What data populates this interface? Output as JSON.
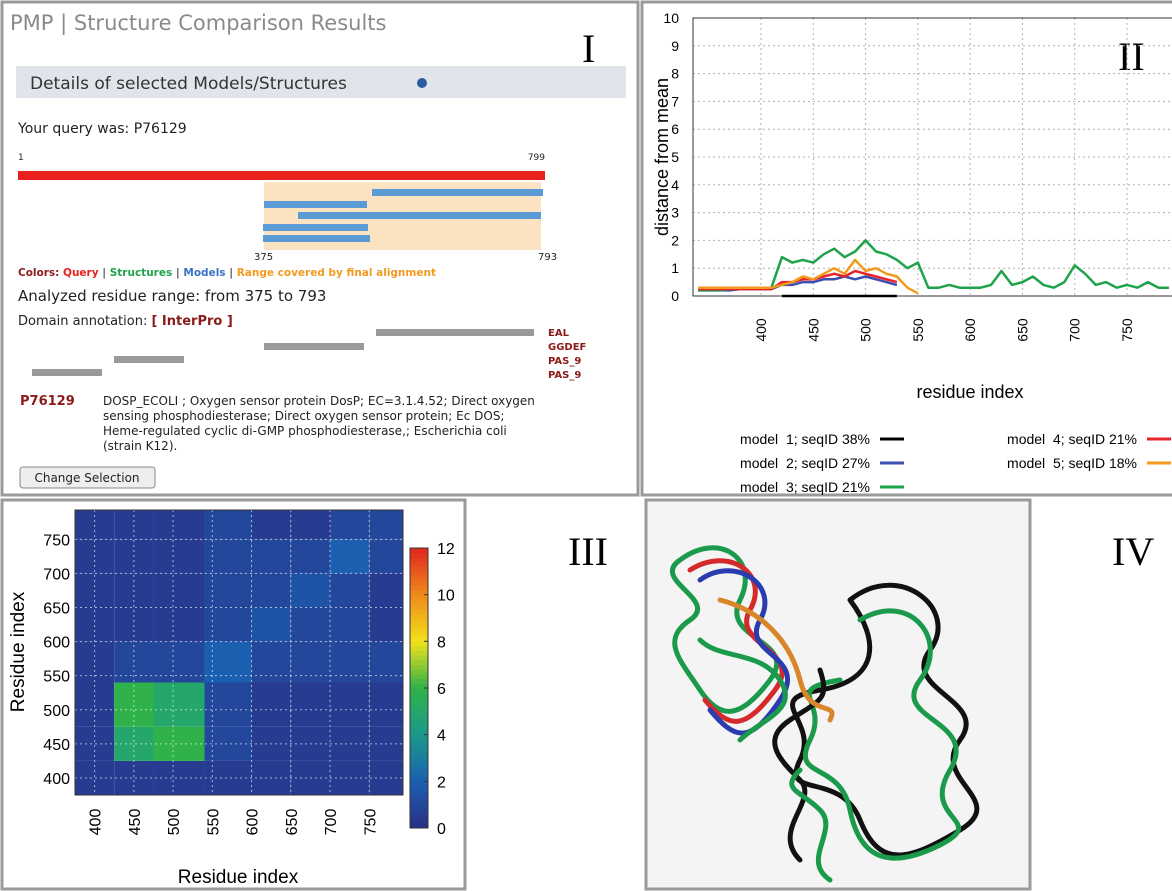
{
  "panel_1": {
    "label": "I",
    "title": "PMP | Structure Comparison Results",
    "section": "Details of selected Models/Structures",
    "query": "Your query was: P76129",
    "sequence_start": "1",
    "sequence_end": "799",
    "range_start": "375",
    "range_end": "793",
    "colors_label": "Colors:",
    "separator": "|",
    "color_query": "Query",
    "color_structures": "Structures",
    "color_models": "Models",
    "color_range": "Range covered by final alignment",
    "analyzed": "Analyzed residue range: from 375 to 793",
    "domain_label": "Domain annotation:",
    "domain_link": "[ InterPro ]",
    "domains": [
      "EAL",
      "GGDEF",
      "PAS_9",
      "PAS_9"
    ],
    "entry_id": "P76129",
    "entry_description": [
      "DOSP_ECOLI ; Oxygen sensor protein DosP; EC=3.1.4.52; Direct oxygen",
      "sensing phosphodiesterase; Direct oxygen sensor protein; Ec DOS;",
      "Heme-regulated cyclic di-GMP phosphodiesterase,; Escherichia coli",
      "(strain K12)."
    ],
    "button": "Change Selection"
  },
  "chart_data": [
    {
      "type": "line",
      "label": "II",
      "x_label": "residue index",
      "y_label": "distance from mean",
      "x": [
        340,
        350,
        360,
        370,
        380,
        390,
        400,
        410,
        420,
        430,
        440,
        450,
        460,
        470,
        480,
        490,
        500,
        510,
        520,
        530,
        540,
        550,
        560,
        570,
        580,
        590,
        600,
        610,
        620,
        630,
        640,
        650,
        660,
        670,
        680,
        690,
        700,
        710,
        720,
        730,
        740,
        750,
        760,
        770,
        780,
        790
      ],
      "series": [
        {
          "name": "model  1; seqID 38%",
          "color": "#000000",
          "values": [
            null,
            null,
            null,
            null,
            null,
            null,
            null,
            null,
            0,
            0,
            0,
            0,
            0,
            0,
            0,
            0,
            0,
            0,
            0,
            0,
            null,
            null,
            null,
            null,
            null,
            null,
            null,
            null,
            null,
            null,
            null,
            null,
            null,
            null,
            null,
            null,
            null,
            null,
            null,
            null,
            null,
            null,
            null,
            null,
            null,
            null
          ]
        },
        {
          "name": "model  2; seqID 27%",
          "color": "#3a4fb0",
          "values": [
            0.2,
            0.2,
            0.2,
            0.2,
            0.25,
            0.25,
            0.25,
            0.25,
            0.4,
            0.4,
            0.5,
            0.5,
            0.6,
            0.6,
            0.7,
            0.6,
            0.7,
            0.6,
            0.5,
            0.4,
            null,
            null,
            null,
            null,
            null,
            null,
            null,
            null,
            null,
            null,
            null,
            null,
            null,
            null,
            null,
            null,
            null,
            null,
            null,
            null,
            null,
            null,
            null,
            null,
            null,
            null
          ]
        },
        {
          "name": "model  3; seqID 21%",
          "color": "#1fa34a",
          "values": [
            0.2,
            0.2,
            0.2,
            0.25,
            0.3,
            0.3,
            0.3,
            0.3,
            1.4,
            1.2,
            1.3,
            1.2,
            1.5,
            1.7,
            1.4,
            1.6,
            2.0,
            1.6,
            1.5,
            1.3,
            1.0,
            1.2,
            0.3,
            0.3,
            0.4,
            0.3,
            0.3,
            0.3,
            0.4,
            0.9,
            0.4,
            0.5,
            0.7,
            0.4,
            0.3,
            0.5,
            1.1,
            0.8,
            0.4,
            0.5,
            0.3,
            0.4,
            0.3,
            0.5,
            0.3,
            0.3
          ]
        },
        {
          "name": "model  4; seqID 21%",
          "color": "#e8242b",
          "values": [
            0.25,
            0.25,
            0.25,
            0.25,
            0.25,
            0.25,
            0.25,
            0.25,
            0.5,
            0.5,
            0.6,
            0.6,
            0.7,
            0.8,
            0.7,
            0.9,
            0.8,
            0.7,
            0.6,
            0.5,
            null,
            null,
            null,
            null,
            null,
            null,
            null,
            null,
            null,
            null,
            null,
            null,
            null,
            null,
            null,
            null,
            null,
            null,
            null,
            null,
            null,
            null,
            null,
            null,
            null,
            null
          ]
        },
        {
          "name": "model  5; seqID 18%",
          "color": "#f39a1e",
          "values": [
            0.3,
            0.3,
            0.3,
            0.3,
            0.3,
            0.3,
            0.3,
            0.3,
            0.4,
            0.5,
            0.7,
            0.6,
            0.8,
            1.0,
            0.8,
            1.3,
            0.9,
            1.0,
            0.8,
            0.7,
            0.3,
            0.1,
            null,
            null,
            null,
            null,
            null,
            null,
            null,
            null,
            null,
            null,
            null,
            null,
            null,
            null,
            null,
            null,
            null,
            null,
            null,
            null,
            null,
            null,
            null,
            null
          ]
        }
      ],
      "xlim": [
        335,
        793
      ],
      "xticks": [
        400,
        450,
        500,
        550,
        600,
        650,
        700,
        750
      ],
      "ylim": [
        0,
        10
      ],
      "yticks": [
        0,
        1,
        2,
        3,
        4,
        5,
        6,
        7,
        8,
        9,
        10
      ],
      "grid": true
    },
    {
      "type": "heatmap",
      "label": "III",
      "x_label": "Residue index",
      "y_label": "Residue index",
      "xbins": [
        375,
        425,
        475,
        540,
        600,
        650,
        700,
        750,
        793
      ],
      "ybins": [
        375,
        425,
        475,
        540,
        600,
        650,
        700,
        750,
        793
      ],
      "values": [
        [
          0.5,
          0.5,
          0.5,
          0.5,
          0.5,
          0.5,
          0.5,
          0.5
        ],
        [
          0.5,
          5,
          6,
          1,
          0.5,
          0.5,
          0.5,
          0.5
        ],
        [
          0.5,
          6,
          5,
          1,
          0.5,
          0.5,
          0.5,
          0.5
        ],
        [
          0.5,
          1,
          1,
          2,
          1,
          1,
          1,
          1
        ],
        [
          0.5,
          0.5,
          0.5,
          1,
          1.5,
          1,
          1,
          0.5
        ],
        [
          0.5,
          0.5,
          0.5,
          1,
          1,
          1.5,
          1,
          0.5
        ],
        [
          0.5,
          0.5,
          0.5,
          1,
          1,
          1,
          2,
          1
        ],
        [
          0.5,
          0.5,
          0.5,
          1,
          0.5,
          0.5,
          1,
          1
        ]
      ],
      "xlim": [
        375,
        793
      ],
      "xticks": [
        400,
        450,
        500,
        550,
        600,
        650,
        700,
        750
      ],
      "ylim": [
        375,
        793
      ],
      "yticks": [
        400,
        450,
        500,
        550,
        600,
        650,
        700,
        750
      ],
      "zlim": [
        0,
        12
      ],
      "zticks": [
        0,
        2,
        4,
        6,
        8,
        10,
        12
      ],
      "colormap": [
        "#2b2f86",
        "#1b5fb0",
        "#1a9a8a",
        "#2fb24a",
        "#f2e21a",
        "#f08a1c",
        "#e0261c"
      ],
      "grid": true
    }
  ],
  "panel_4": {
    "label": "IV"
  }
}
